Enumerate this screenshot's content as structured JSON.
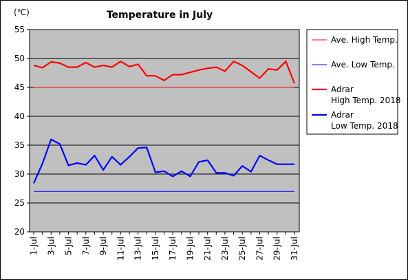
{
  "chart_data": {
    "type": "line",
    "title": "Temperature in July",
    "ylabel": "(℃)",
    "xlabel": "",
    "ylim": [
      20,
      55
    ],
    "yticks": [
      20,
      25,
      30,
      35,
      40,
      45,
      50,
      55
    ],
    "grid": "horizontal",
    "legend_placement": "right",
    "plot_background": "#c0c0c0",
    "x": [
      1,
      2,
      3,
      4,
      5,
      6,
      7,
      8,
      9,
      10,
      11,
      12,
      13,
      14,
      15,
      16,
      17,
      18,
      19,
      20,
      21,
      22,
      23,
      24,
      25,
      26,
      27,
      28,
      29,
      30,
      31
    ],
    "x_tick_labels": [
      "1-Jul",
      "3-Jul",
      "5-Jul",
      "7-Jul",
      "9-Jul",
      "11-Jul",
      "13-Jul",
      "15-Jul",
      "17-Jul",
      "19-Jul",
      "21-Jul",
      "23-Jul",
      "25-Jul",
      "27-Jul",
      "29-Jul",
      "31-Jul"
    ],
    "x_tick_days": [
      1,
      3,
      5,
      7,
      9,
      11,
      13,
      15,
      17,
      19,
      21,
      23,
      25,
      27,
      29,
      31
    ],
    "series": [
      {
        "name": "Ave. High Temp.",
        "color": "#ff0000",
        "style": "thin",
        "values": [
          45,
          45,
          45,
          45,
          45,
          45,
          45,
          45,
          45,
          45,
          45,
          45,
          45,
          45,
          45,
          45,
          45,
          45,
          45,
          45,
          45,
          45,
          45,
          45,
          45,
          45,
          45,
          45,
          45,
          45,
          45
        ]
      },
      {
        "name": "Ave. Low Temp.",
        "color": "#0000ff",
        "style": "thin",
        "values": [
          27,
          27,
          27,
          27,
          27,
          27,
          27,
          27,
          27,
          27,
          27,
          27,
          27,
          27,
          27,
          27,
          27,
          27,
          27,
          27,
          27,
          27,
          27,
          27,
          27,
          27,
          27,
          27,
          27,
          27,
          27
        ]
      },
      {
        "name": "Adrar\nHigh Temp. 2018",
        "label_lines": [
          "Adrar",
          "High Temp. 2018"
        ],
        "color": "#ff0000",
        "style": "thick",
        "values": [
          48.8,
          48.4,
          49.4,
          49.2,
          48.5,
          48.5,
          49.3,
          48.5,
          48.8,
          48.5,
          49.5,
          48.6,
          49,
          47,
          47,
          46.2,
          47.2,
          47.2,
          47.6,
          48,
          48.3,
          48.5,
          47.8,
          49.5,
          48.8,
          47.7,
          46.6,
          48.2,
          48,
          49.5,
          45.7
        ]
      },
      {
        "name": "Adrar\nLow Temp. 2018",
        "label_lines": [
          "Adrar",
          "Low Temp. 2018"
        ],
        "color": "#0000ff",
        "style": "thick",
        "values": [
          28.4,
          31.8,
          36,
          35.2,
          31.5,
          31.9,
          31.6,
          33.2,
          30.7,
          33,
          31.6,
          33,
          34.5,
          34.6,
          30.3,
          30.5,
          29.6,
          30.5,
          29.6,
          32.1,
          32.4,
          30.2,
          30.2,
          29.7,
          31.4,
          30.4,
          33.2,
          32.4,
          31.7,
          31.7,
          31.7
        ]
      }
    ]
  }
}
